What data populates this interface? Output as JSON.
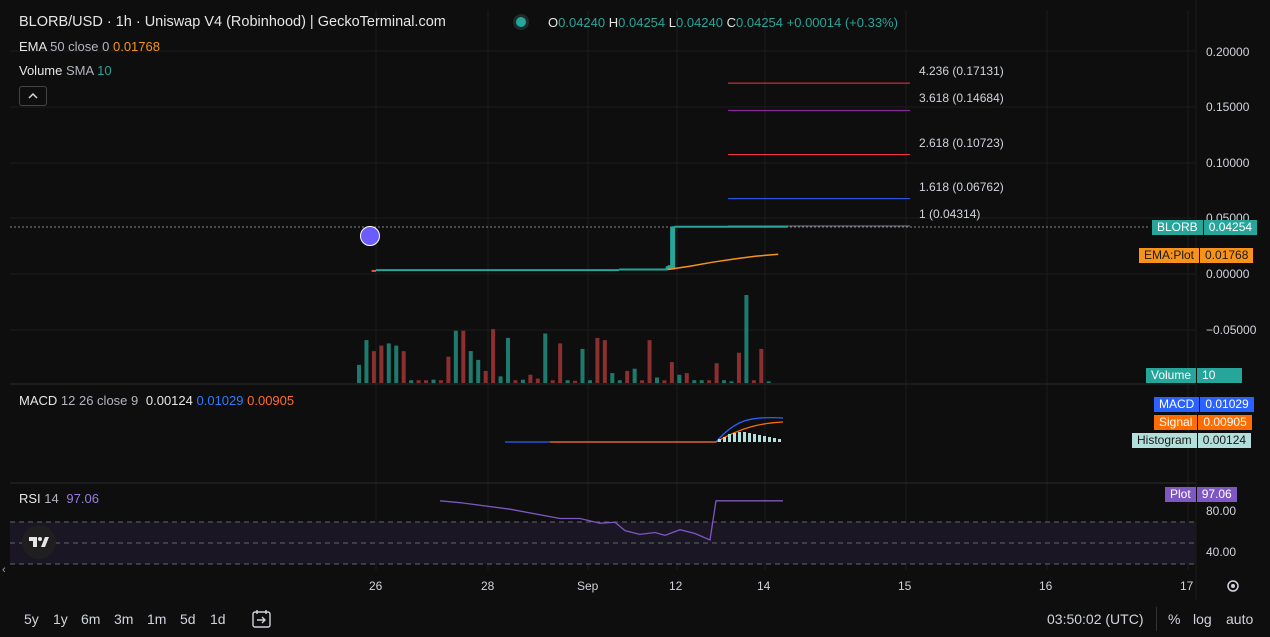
{
  "header": {
    "title": "BLORB/USD · 1h · Uniswap V4 (Robinhood) | GeckoTerminal.com",
    "ohlc": {
      "o_label": "O",
      "o": "0.04240",
      "h_label": "H",
      "h": "0.04254",
      "l_label": "L",
      "l": "0.04240",
      "c_label": "C",
      "c": "0.04254",
      "change": "+0.00014 (+0.33%)"
    },
    "ema": {
      "name": "EMA",
      "params": "50 close 0",
      "value": "0.01768"
    },
    "volume": {
      "name": "Volume",
      "params": "SMA",
      "value": "10"
    },
    "macd": {
      "name": "MACD",
      "params": "12 26 close 9",
      "histogram": "0.00124",
      "macd": "0.01029",
      "signal": "0.00905"
    },
    "rsi": {
      "name": "RSI",
      "params": "14",
      "value": "97.06"
    }
  },
  "price_axis": {
    "ticks": [
      "0.20000",
      "0.15000",
      "0.10000",
      "0.05000",
      "0.00000",
      "−0.05000"
    ]
  },
  "rsi_axis": {
    "ticks": [
      "80.00",
      "40.00"
    ]
  },
  "time_axis": {
    "ticks": [
      "26",
      "28",
      "Sep",
      "12",
      "14",
      "15",
      "16",
      "17"
    ]
  },
  "price_tags": [
    {
      "name": "BLORB",
      "value": "0.04254",
      "color": "#26a69a"
    },
    {
      "name": "EMA:Plot",
      "value": "0.01768",
      "color": "#f7931a"
    },
    {
      "name": "Volume",
      "value": "10",
      "color": "#26a69a"
    },
    {
      "name": "MACD",
      "value": "0.01029",
      "color": "#2962ff"
    },
    {
      "name": "Signal",
      "value": "0.00905",
      "color": "#ff6d00"
    },
    {
      "name": "Histogram",
      "value": "0.00124",
      "color": "#b2dfdb"
    },
    {
      "name": "Plot",
      "value": "97.06",
      "color": "#7e57c2"
    }
  ],
  "fib_levels": [
    {
      "label": "4.236 (0.17131)",
      "price": 0.17131,
      "color": "#f23645"
    },
    {
      "label": "3.618 (0.14684)",
      "price": 0.14684,
      "color": "#9c27b0"
    },
    {
      "label": "2.618 (0.10723)",
      "price": 0.10723,
      "color": "#f23645"
    },
    {
      "label": "1.618 (0.06762)",
      "price": 0.06762,
      "color": "#2962ff"
    },
    {
      "label": "1 (0.04314)",
      "price": 0.04314,
      "color": "#787b86"
    }
  ],
  "bottom_bar": {
    "timeframes": [
      "5y",
      "1y",
      "6m",
      "3m",
      "1m",
      "5d",
      "1d"
    ],
    "clock": "03:50:02 (UTC)",
    "percent": "%",
    "log": "log",
    "auto": "auto"
  },
  "chart_data": {
    "type": "candlestick",
    "title": "BLORB/USD · 1h · Uniswap V4 (Robinhood) | GeckoTerminal.com",
    "price_range": [
      -0.1,
      0.22
    ],
    "x_axis_days": [
      "26",
      "28",
      "Sep",
      "12",
      "14",
      "15",
      "16",
      "17"
    ],
    "price_series": {
      "name": "BLORB",
      "segments": [
        {
          "from_day": 25.9,
          "to_day": 26.0,
          "price": 0.0028
        },
        {
          "from_day": 26.0,
          "to_day": 31.5,
          "price": 0.0035
        },
        {
          "from_day": 31.5,
          "to_day": 32.6,
          "price": 0.004
        },
        {
          "from_day": 32.6,
          "to_day": 32.7,
          "price": 0.007
        },
        {
          "from_day": 32.7,
          "to_day": 32.75,
          "price": 0.042
        },
        {
          "from_day": 32.75,
          "to_day": 35.3,
          "price": 0.0424
        }
      ]
    },
    "ema": {
      "name": "EMA",
      "values_start_day": 32.6,
      "values": [
        0.004,
        0.007,
        0.0105,
        0.0135,
        0.016,
        0.01768
      ]
    },
    "volume_bars": [
      0.33,
      0.78,
      0.58,
      0.68,
      0.72,
      0.68,
      0.58,
      0.05,
      0.05,
      0.05,
      0.06,
      0.05,
      0.48,
      0.95,
      0.95,
      0.58,
      0.42,
      0.22,
      0.98,
      0.12,
      0.82,
      0.05,
      0.06,
      0.15,
      0.08,
      0.9,
      0.05,
      0.72,
      0.05,
      0.04,
      0.62,
      0.05,
      0.82,
      0.78,
      0.18,
      0.05,
      0.22,
      0.26,
      0.05,
      0.78,
      0.1,
      0.05,
      0.38,
      0.15,
      0.18,
      0.05,
      0.05,
      0.05,
      0.36,
      0.05,
      0.03,
      0.55,
      1.6,
      0.05,
      0.62,
      0.03
    ],
    "rsi": {
      "name": "RSI",
      "values": [
        97,
        95,
        88,
        78,
        78,
        73,
        74,
        65,
        61,
        63,
        60,
        66,
        62,
        55,
        97,
        97,
        97
      ],
      "range": [
        0,
        100
      ]
    },
    "macd": {
      "macd": 0.01029,
      "signal": 0.00905,
      "histogram": 0.00124
    }
  }
}
